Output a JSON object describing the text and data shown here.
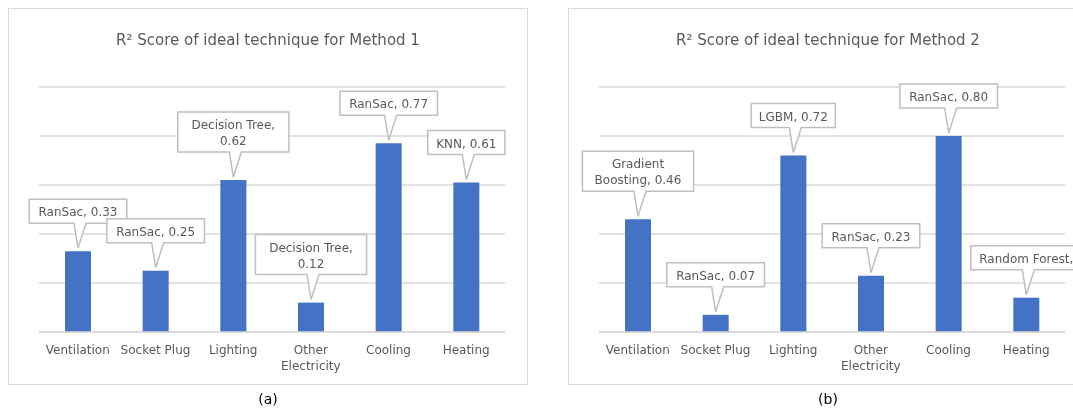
{
  "chart_data": [
    {
      "type": "bar",
      "title": "R² Score of ideal technique for Method 1",
      "categories": [
        "Ventilation",
        "Socket Plug",
        "Lighting",
        "Other Electricity",
        "Cooling",
        "Heating"
      ],
      "values": [
        0.33,
        0.25,
        0.62,
        0.12,
        0.77,
        0.61
      ],
      "color": "#4472c4",
      "value_labels": [
        "RanSac, 0.33",
        "RanSac, 0.25",
        "Decision Tree, 0.62",
        "Decision Tree, 0.12",
        "RanSac, 0.77",
        "KNN, 0.61"
      ],
      "ylim": [
        0,
        1
      ],
      "yticks": [
        {
          "value": 0,
          "label": null
        },
        {
          "value": 0.2,
          "label": null
        },
        {
          "value": 0.4,
          "label": null
        },
        {
          "value": 0.6,
          "label": null
        },
        {
          "value": 0.8,
          "label": null
        },
        {
          "value": 1,
          "label": null
        }
      ],
      "grid": "y",
      "tick_labels": "x",
      "legend": false,
      "annotations": [
        "(a)"
      ]
    },
    {
      "type": "bar",
      "title": "R² Score of ideal technique for Method 2",
      "categories": [
        "Ventilation",
        "Socket Plug",
        "Lighting",
        "Other Electricity",
        "Cooling",
        "Heating"
      ],
      "values": [
        0.46,
        0.07,
        0.72,
        0.23,
        0.8,
        0.14
      ],
      "color": "#4472c4",
      "value_labels": [
        "Gradient Boosting, 0.46",
        "RanSac, 0.07",
        "LGBM, 0.72",
        "RanSac, 0.23",
        "RanSac, 0.80",
        "Random Forest,"
      ],
      "ylim": [
        0,
        1
      ],
      "yticks": [
        {
          "value": 0,
          "label": null
        },
        {
          "value": 0.2,
          "label": null
        },
        {
          "value": 0.4,
          "label": null
        },
        {
          "value": 0.6,
          "label": null
        },
        {
          "value": 0.8,
          "label": null
        },
        {
          "value": 1,
          "label": null
        }
      ],
      "grid": "y",
      "tick_labels": "x",
      "legend": false,
      "annotations": [
        "(b)"
      ]
    }
  ]
}
